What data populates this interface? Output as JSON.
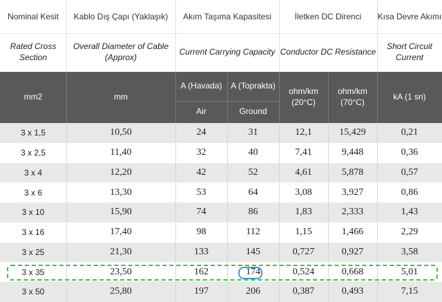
{
  "header": {
    "col1": {
      "tr": "Nominal Kesit",
      "en": "Rated Cross Section",
      "unit": "mm2"
    },
    "col2": {
      "tr": "Kablo Dış Çapı (Yaklaşık)",
      "en": "Overall Diameter of Cable (Approx)",
      "unit": "mm"
    },
    "col3": {
      "tr": "Akım Taşıma Kapasitesi",
      "en": "Current Carrying Capacity",
      "sub_a": "A (Havada)",
      "sub_a_en": "Air",
      "sub_b": "A (Toprakta)",
      "sub_b_en": "Ground"
    },
    "col4": {
      "tr": "İletken DC Direnci",
      "en": "Conductor DC Resistance",
      "sub_a": "ohm/km (20°C)",
      "sub_b": "ohm/km (70°C)"
    },
    "col5": {
      "tr": "Kısa Devre Akımı",
      "en": "Short Circuit Current",
      "unit": "kA (1 sn)"
    }
  },
  "rows": [
    {
      "section": "3 x 1,5",
      "diameter": "10,50",
      "air": "24",
      "ground": "31",
      "r20": "12,1",
      "r70": "15,429",
      "sc": "0,21"
    },
    {
      "section": "3 x 2,5",
      "diameter": "11,40",
      "air": "32",
      "ground": "40",
      "r20": "7,41",
      "r70": "9,448",
      "sc": "0,36"
    },
    {
      "section": "3 x 4",
      "diameter": "12,20",
      "air": "42",
      "ground": "52",
      "r20": "4,61",
      "r70": "5,878",
      "sc": "0,57"
    },
    {
      "section": "3 x 6",
      "diameter": "13,30",
      "air": "53",
      "ground": "64",
      "r20": "3,08",
      "r70": "3,927",
      "sc": "0,86"
    },
    {
      "section": "3 x 10",
      "diameter": "15,90",
      "air": "74",
      "ground": "86",
      "r20": "1,83",
      "r70": "2,333",
      "sc": "1,43"
    },
    {
      "section": "3 x 16",
      "diameter": "17,40",
      "air": "98",
      "ground": "112",
      "r20": "1,15",
      "r70": "1,466",
      "sc": "2,29"
    },
    {
      "section": "3 x 25",
      "diameter": "21,30",
      "air": "133",
      "ground": "145",
      "r20": "0,727",
      "r70": "0,927",
      "sc": "3,58"
    },
    {
      "section": "3 x 35",
      "diameter": "23,50",
      "air": "162",
      "ground": "174",
      "r20": "0,524",
      "r70": "0,668",
      "sc": "5,01"
    },
    {
      "section": "3 x 50",
      "diameter": "25,80",
      "air": "197",
      "ground": "206",
      "r20": "0,387",
      "r70": "0,493",
      "sc": "7,15"
    }
  ],
  "highlight": {
    "row_section": "3 x 35",
    "circled_value": "174",
    "dashed_color": "#2ecc2e",
    "circle_color": "#3a9ad9"
  }
}
